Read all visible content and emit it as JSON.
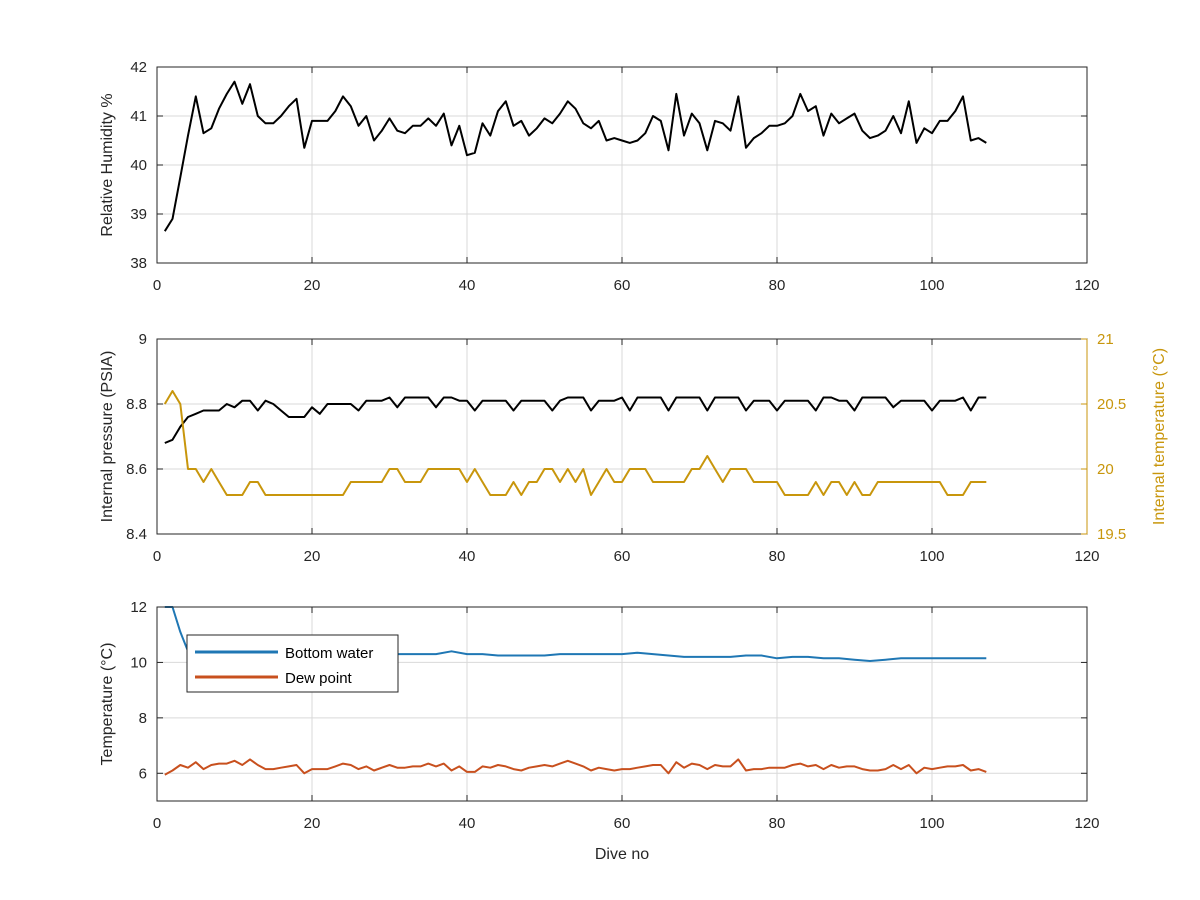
{
  "figure": {
    "xlabel": "Dive no",
    "colors": {
      "black": "#000000",
      "gold": "#c8960c",
      "blue": "#1f77b4",
      "orange": "#c8501e",
      "grid": "#d9d9d9",
      "axis": "#262626"
    }
  },
  "chart_data": [
    {
      "type": "line",
      "xlim": [
        0,
        120
      ],
      "ylim": [
        38,
        42
      ],
      "xticks": [
        0,
        20,
        40,
        60,
        80,
        100,
        120
      ],
      "yticks": [
        38,
        39,
        40,
        41,
        42
      ],
      "ylabel": "Relative Humidity %",
      "grid": true,
      "series": [
        {
          "color": "#000000",
          "x": [
            1,
            2,
            3,
            4,
            5,
            6,
            7,
            8,
            9,
            10,
            11,
            12,
            13,
            14,
            15,
            16,
            17,
            18,
            19,
            20,
            21,
            22,
            23,
            24,
            25,
            26,
            27,
            28,
            29,
            30,
            31,
            32,
            33,
            34,
            35,
            36,
            37,
            38,
            39,
            40,
            41,
            42,
            43,
            44,
            45,
            46,
            47,
            48,
            49,
            50,
            51,
            52,
            53,
            54,
            55,
            56,
            57,
            58,
            59,
            60,
            61,
            62,
            63,
            64,
            65,
            66,
            67,
            68,
            69,
            70,
            71,
            72,
            73,
            74,
            75,
            76,
            77,
            78,
            79,
            80,
            81,
            82,
            83,
            84,
            85,
            86,
            87,
            88,
            89,
            90,
            91,
            92,
            93,
            94,
            95,
            96,
            97,
            98,
            99,
            100,
            101,
            102,
            103,
            104,
            105,
            106,
            107
          ],
          "values": [
            38.65,
            38.9,
            39.75,
            40.6,
            41.4,
            40.65,
            40.75,
            41.15,
            41.45,
            41.7,
            41.25,
            41.65,
            41.0,
            40.85,
            40.85,
            41.0,
            41.2,
            41.35,
            40.35,
            40.9,
            40.9,
            40.9,
            41.1,
            41.4,
            41.2,
            40.8,
            41.0,
            40.5,
            40.7,
            40.95,
            40.7,
            40.65,
            40.8,
            40.8,
            40.95,
            40.8,
            41.05,
            40.4,
            40.8,
            40.2,
            40.25,
            40.85,
            40.6,
            41.1,
            41.3,
            40.8,
            40.9,
            40.6,
            40.75,
            40.95,
            40.85,
            41.05,
            41.3,
            41.15,
            40.85,
            40.75,
            40.9,
            40.5,
            40.55,
            40.5,
            40.45,
            40.5,
            40.65,
            41.0,
            40.9,
            40.3,
            41.45,
            40.6,
            41.05,
            40.85,
            40.3,
            40.9,
            40.85,
            40.7,
            41.4,
            40.35,
            40.55,
            40.65,
            40.8,
            40.8,
            40.85,
            41.0,
            41.45,
            41.1,
            41.2,
            40.6,
            41.05,
            40.85,
            40.95,
            41.05,
            40.7,
            40.55,
            40.6,
            40.7,
            41.0,
            40.65,
            41.3,
            40.45,
            40.75,
            40.65,
            40.9,
            40.9,
            41.1,
            41.4,
            40.5,
            40.55,
            40.45
          ]
        }
      ]
    },
    {
      "type": "line",
      "xlim": [
        0,
        120
      ],
      "ylim": [
        8.4,
        9
      ],
      "xticks": [
        0,
        20,
        40,
        60,
        80,
        100,
        120
      ],
      "yticks": [
        8.4,
        8.6,
        8.8,
        9
      ],
      "ylabel": "Internal pressure (PSIA)",
      "y2lim": [
        19.5,
        21
      ],
      "y2ticks": [
        19.5,
        20,
        20.5,
        21
      ],
      "y2label": "Internal temperature (°C)",
      "grid": true,
      "series": [
        {
          "color": "#000000",
          "axis": "left",
          "x": [
            1,
            2,
            3,
            4,
            5,
            6,
            7,
            8,
            9,
            10,
            11,
            12,
            13,
            14,
            15,
            16,
            17,
            18,
            19,
            20,
            21,
            22,
            23,
            24,
            25,
            26,
            27,
            28,
            29,
            30,
            31,
            32,
            33,
            34,
            35,
            36,
            37,
            38,
            39,
            40,
            41,
            42,
            43,
            44,
            45,
            46,
            47,
            48,
            49,
            50,
            51,
            52,
            53,
            54,
            55,
            56,
            57,
            58,
            59,
            60,
            61,
            62,
            63,
            64,
            65,
            66,
            67,
            68,
            69,
            70,
            71,
            72,
            73,
            74,
            75,
            76,
            77,
            78,
            79,
            80,
            81,
            82,
            83,
            84,
            85,
            86,
            87,
            88,
            89,
            90,
            91,
            92,
            93,
            94,
            95,
            96,
            97,
            98,
            99,
            100,
            101,
            102,
            103,
            104,
            105,
            106,
            107
          ],
          "values": [
            8.68,
            8.69,
            8.73,
            8.76,
            8.77,
            8.78,
            8.78,
            8.78,
            8.8,
            8.79,
            8.81,
            8.81,
            8.78,
            8.81,
            8.8,
            8.78,
            8.76,
            8.76,
            8.76,
            8.79,
            8.77,
            8.8,
            8.8,
            8.8,
            8.8,
            8.78,
            8.81,
            8.81,
            8.81,
            8.82,
            8.79,
            8.82,
            8.82,
            8.82,
            8.82,
            8.79,
            8.82,
            8.82,
            8.81,
            8.81,
            8.78,
            8.81,
            8.81,
            8.81,
            8.81,
            8.78,
            8.81,
            8.81,
            8.81,
            8.81,
            8.78,
            8.81,
            8.82,
            8.82,
            8.82,
            8.78,
            8.81,
            8.81,
            8.81,
            8.82,
            8.78,
            8.82,
            8.82,
            8.82,
            8.82,
            8.78,
            8.82,
            8.82,
            8.82,
            8.82,
            8.78,
            8.82,
            8.82,
            8.82,
            8.82,
            8.78,
            8.81,
            8.81,
            8.81,
            8.78,
            8.81,
            8.81,
            8.81,
            8.81,
            8.78,
            8.82,
            8.82,
            8.81,
            8.81,
            8.78,
            8.82,
            8.82,
            8.82,
            8.82,
            8.79,
            8.81,
            8.81,
            8.81,
            8.81,
            8.78,
            8.81,
            8.81,
            8.81,
            8.82,
            8.78,
            8.82,
            8.82
          ]
        },
        {
          "color": "#c8960c",
          "axis": "right",
          "x": [
            1,
            2,
            3,
            4,
            5,
            6,
            7,
            8,
            9,
            10,
            11,
            12,
            13,
            14,
            15,
            16,
            17,
            18,
            19,
            20,
            21,
            22,
            23,
            24,
            25,
            26,
            27,
            28,
            29,
            30,
            31,
            32,
            33,
            34,
            35,
            36,
            37,
            38,
            39,
            40,
            41,
            42,
            43,
            44,
            45,
            46,
            47,
            48,
            49,
            50,
            51,
            52,
            53,
            54,
            55,
            56,
            57,
            58,
            59,
            60,
            61,
            62,
            63,
            64,
            65,
            66,
            67,
            68,
            69,
            70,
            71,
            72,
            73,
            74,
            75,
            76,
            77,
            78,
            79,
            80,
            81,
            82,
            83,
            84,
            85,
            86,
            87,
            88,
            89,
            90,
            91,
            92,
            93,
            94,
            95,
            96,
            97,
            98,
            99,
            100,
            101,
            102,
            103,
            104,
            105,
            106,
            107
          ],
          "values": [
            20.5,
            20.6,
            20.5,
            20.0,
            20.0,
            19.9,
            20.0,
            19.9,
            19.8,
            19.8,
            19.8,
            19.9,
            19.9,
            19.8,
            19.8,
            19.8,
            19.8,
            19.8,
            19.8,
            19.8,
            19.8,
            19.8,
            19.8,
            19.8,
            19.9,
            19.9,
            19.9,
            19.9,
            19.9,
            20.0,
            20.0,
            19.9,
            19.9,
            19.9,
            20.0,
            20.0,
            20.0,
            20.0,
            20.0,
            19.9,
            20.0,
            19.9,
            19.8,
            19.8,
            19.8,
            19.9,
            19.8,
            19.9,
            19.9,
            20.0,
            20.0,
            19.9,
            20.0,
            19.9,
            20.0,
            19.8,
            19.9,
            20.0,
            19.9,
            19.9,
            20.0,
            20.0,
            20.0,
            19.9,
            19.9,
            19.9,
            19.9,
            19.9,
            20.0,
            20.0,
            20.1,
            20.0,
            19.9,
            20.0,
            20.0,
            20.0,
            19.9,
            19.9,
            19.9,
            19.9,
            19.8,
            19.8,
            19.8,
            19.8,
            19.9,
            19.8,
            19.9,
            19.9,
            19.8,
            19.9,
            19.8,
            19.8,
            19.9,
            19.9,
            19.9,
            19.9,
            19.9,
            19.9,
            19.9,
            19.9,
            19.9,
            19.8,
            19.8,
            19.8,
            19.9,
            19.9,
            19.9
          ]
        }
      ]
    },
    {
      "type": "line",
      "xlim": [
        0,
        120
      ],
      "ylim": [
        5,
        12
      ],
      "xticks": [
        0,
        20,
        40,
        60,
        80,
        100,
        120
      ],
      "yticks": [
        6,
        8,
        10,
        12
      ],
      "ylabel": "Temperature (°C)",
      "xlabel": "Dive no",
      "grid": true,
      "legend_position": "top-left",
      "series": [
        {
          "name": "Bottom water",
          "color": "#1f77b4",
          "x": [
            1,
            2,
            3,
            4,
            5,
            6,
            8,
            10,
            12,
            14,
            16,
            18,
            20,
            22,
            24,
            26,
            28,
            30,
            32,
            34,
            36,
            38,
            40,
            42,
            44,
            46,
            48,
            50,
            52,
            54,
            56,
            58,
            60,
            62,
            64,
            66,
            68,
            70,
            72,
            74,
            76,
            78,
            80,
            82,
            84,
            86,
            88,
            90,
            92,
            94,
            96,
            98,
            100,
            102,
            104,
            106,
            107
          ],
          "values": [
            12.4,
            12.0,
            11.1,
            10.4,
            10.3,
            10.3,
            10.3,
            10.35,
            10.3,
            10.3,
            10.3,
            10.3,
            10.3,
            10.3,
            10.3,
            10.3,
            10.3,
            10.3,
            10.3,
            10.3,
            10.3,
            10.4,
            10.3,
            10.3,
            10.25,
            10.25,
            10.25,
            10.25,
            10.3,
            10.3,
            10.3,
            10.3,
            10.3,
            10.35,
            10.3,
            10.25,
            10.2,
            10.2,
            10.2,
            10.2,
            10.25,
            10.25,
            10.15,
            10.2,
            10.2,
            10.15,
            10.15,
            10.1,
            10.05,
            10.1,
            10.15,
            10.15,
            10.15,
            10.15,
            10.15,
            10.15,
            10.15
          ]
        },
        {
          "name": "Dew point",
          "color": "#c8501e",
          "x": [
            1,
            2,
            3,
            4,
            5,
            6,
            7,
            8,
            9,
            10,
            11,
            12,
            13,
            14,
            15,
            16,
            17,
            18,
            19,
            20,
            21,
            22,
            23,
            24,
            25,
            26,
            27,
            28,
            29,
            30,
            31,
            32,
            33,
            34,
            35,
            36,
            37,
            38,
            39,
            40,
            41,
            42,
            43,
            44,
            45,
            46,
            47,
            48,
            49,
            50,
            51,
            52,
            53,
            54,
            55,
            56,
            57,
            58,
            59,
            60,
            61,
            62,
            63,
            64,
            65,
            66,
            67,
            68,
            69,
            70,
            71,
            72,
            73,
            74,
            75,
            76,
            77,
            78,
            79,
            80,
            81,
            82,
            83,
            84,
            85,
            86,
            87,
            88,
            89,
            90,
            91,
            92,
            93,
            94,
            95,
            96,
            97,
            98,
            99,
            100,
            101,
            102,
            103,
            104,
            105,
            106,
            107
          ],
          "values": [
            5.95,
            6.1,
            6.3,
            6.2,
            6.4,
            6.15,
            6.3,
            6.35,
            6.35,
            6.45,
            6.3,
            6.5,
            6.3,
            6.15,
            6.15,
            6.2,
            6.25,
            6.3,
            6.0,
            6.15,
            6.15,
            6.15,
            6.25,
            6.35,
            6.3,
            6.15,
            6.25,
            6.1,
            6.2,
            6.3,
            6.2,
            6.2,
            6.25,
            6.25,
            6.35,
            6.25,
            6.35,
            6.1,
            6.25,
            6.05,
            6.05,
            6.25,
            6.2,
            6.3,
            6.25,
            6.15,
            6.1,
            6.2,
            6.25,
            6.3,
            6.25,
            6.35,
            6.45,
            6.35,
            6.25,
            6.1,
            6.2,
            6.15,
            6.1,
            6.15,
            6.15,
            6.2,
            6.25,
            6.3,
            6.3,
            6.0,
            6.4,
            6.2,
            6.35,
            6.3,
            6.15,
            6.3,
            6.25,
            6.25,
            6.5,
            6.1,
            6.15,
            6.15,
            6.2,
            6.2,
            6.2,
            6.3,
            6.35,
            6.25,
            6.3,
            6.15,
            6.3,
            6.2,
            6.25,
            6.25,
            6.15,
            6.1,
            6.1,
            6.15,
            6.3,
            6.15,
            6.3,
            6.0,
            6.2,
            6.15,
            6.2,
            6.25,
            6.25,
            6.3,
            6.1,
            6.15,
            6.05
          ]
        }
      ]
    }
  ]
}
